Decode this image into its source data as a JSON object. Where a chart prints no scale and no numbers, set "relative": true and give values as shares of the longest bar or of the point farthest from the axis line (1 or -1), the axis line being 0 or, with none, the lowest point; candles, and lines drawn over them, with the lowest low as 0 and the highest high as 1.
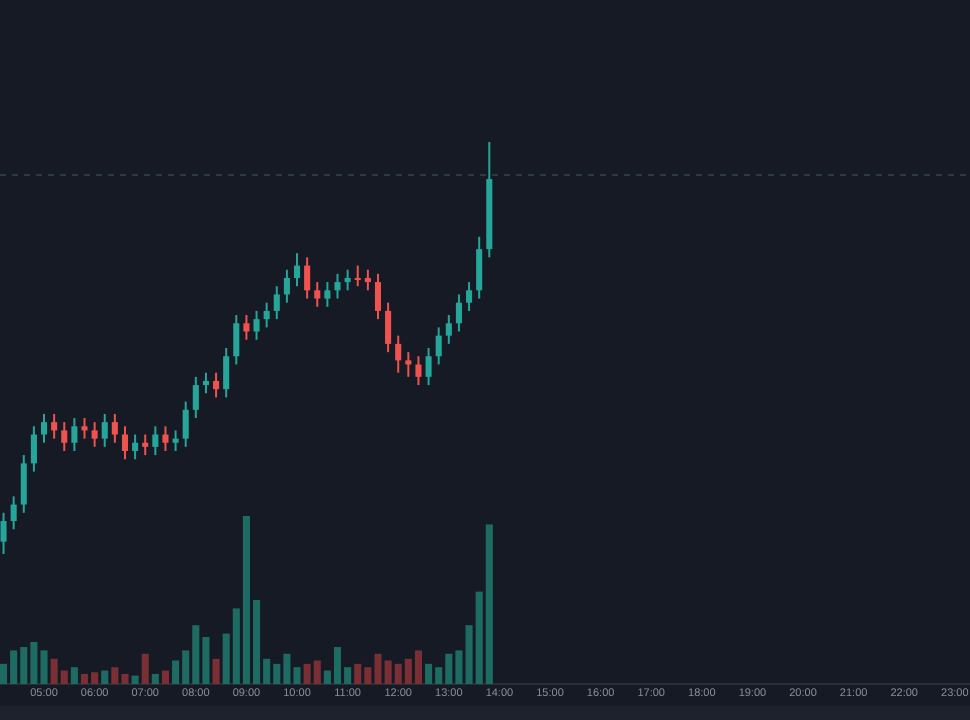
{
  "chart_data": [
    {
      "type": "candlestick",
      "relative": true,
      "xlim": [
        4.13,
        23.3
      ],
      "x": [
        4.2,
        4.4,
        4.6,
        4.8,
        5.0,
        5.2,
        5.4,
        5.6,
        5.8,
        6.0,
        6.2,
        6.4,
        6.6,
        6.8,
        7.0,
        7.2,
        7.4,
        7.6,
        7.8,
        8.0,
        8.2,
        8.4,
        8.6,
        8.8,
        9.0,
        9.2,
        9.4,
        9.6,
        9.8,
        10.0,
        10.2,
        10.4,
        10.6,
        10.8,
        11.0,
        11.2,
        11.4,
        11.6,
        11.8,
        12.0,
        12.2,
        12.4,
        12.6,
        12.8,
        13.0,
        13.2,
        13.4,
        13.6,
        13.8
      ],
      "ohlc": [
        [
          0.03,
          0.1,
          0,
          0.08
        ],
        [
          0.08,
          0.14,
          0.06,
          0.12
        ],
        [
          0.12,
          0.24,
          0.1,
          0.22
        ],
        [
          0.22,
          0.31,
          0.2,
          0.29
        ],
        [
          0.29,
          0.34,
          0.27,
          0.32
        ],
        [
          0.32,
          0.34,
          0.28,
          0.3
        ],
        [
          0.3,
          0.32,
          0.25,
          0.27
        ],
        [
          0.27,
          0.33,
          0.25,
          0.31
        ],
        [
          0.31,
          0.33,
          0.28,
          0.3
        ],
        [
          0.3,
          0.32,
          0.26,
          0.28
        ],
        [
          0.28,
          0.34,
          0.26,
          0.32
        ],
        [
          0.32,
          0.34,
          0.27,
          0.29
        ],
        [
          0.29,
          0.31,
          0.23,
          0.25
        ],
        [
          0.25,
          0.29,
          0.23,
          0.27
        ],
        [
          0.27,
          0.29,
          0.24,
          0.26
        ],
        [
          0.26,
          0.31,
          0.24,
          0.29
        ],
        [
          0.29,
          0.31,
          0.25,
          0.27
        ],
        [
          0.27,
          0.3,
          0.25,
          0.28
        ],
        [
          0.28,
          0.37,
          0.26,
          0.35
        ],
        [
          0.35,
          0.43,
          0.33,
          0.41
        ],
        [
          0.41,
          0.44,
          0.39,
          0.42
        ],
        [
          0.42,
          0.44,
          0.38,
          0.4
        ],
        [
          0.4,
          0.5,
          0.38,
          0.48
        ],
        [
          0.48,
          0.58,
          0.46,
          0.56
        ],
        [
          0.56,
          0.58,
          0.52,
          0.54
        ],
        [
          0.54,
          0.59,
          0.52,
          0.57
        ],
        [
          0.57,
          0.61,
          0.55,
          0.59
        ],
        [
          0.59,
          0.65,
          0.57,
          0.63
        ],
        [
          0.63,
          0.69,
          0.61,
          0.67
        ],
        [
          0.67,
          0.73,
          0.65,
          0.7
        ],
        [
          0.7,
          0.72,
          0.62,
          0.64
        ],
        [
          0.64,
          0.66,
          0.6,
          0.62
        ],
        [
          0.62,
          0.66,
          0.6,
          0.64
        ],
        [
          0.64,
          0.68,
          0.62,
          0.66
        ],
        [
          0.66,
          0.69,
          0.64,
          0.67
        ],
        [
          0.67,
          0.7,
          0.65,
          0.67
        ],
        [
          0.67,
          0.69,
          0.64,
          0.66
        ],
        [
          0.66,
          0.68,
          0.57,
          0.59
        ],
        [
          0.59,
          0.61,
          0.49,
          0.51
        ],
        [
          0.51,
          0.53,
          0.44,
          0.47
        ],
        [
          0.47,
          0.49,
          0.43,
          0.46
        ],
        [
          0.46,
          0.48,
          0.41,
          0.43
        ],
        [
          0.43,
          0.5,
          0.41,
          0.48
        ],
        [
          0.48,
          0.55,
          0.46,
          0.53
        ],
        [
          0.53,
          0.58,
          0.51,
          0.56
        ],
        [
          0.56,
          0.63,
          0.54,
          0.61
        ],
        [
          0.61,
          0.66,
          0.59,
          0.64
        ],
        [
          0.64,
          0.77,
          0.62,
          0.74
        ],
        [
          0.74,
          1,
          0.72,
          0.91
        ]
      ],
      "colors": [
        "#26a69a",
        "#26a69a",
        "#26a69a",
        "#26a69a",
        "#26a69a",
        "#ef5350",
        "#ef5350",
        "#26a69a",
        "#ef5350",
        "#ef5350",
        "#26a69a",
        "#ef5350",
        "#ef5350",
        "#26a69a",
        "#ef5350",
        "#26a69a",
        "#ef5350",
        "#26a69a",
        "#26a69a",
        "#26a69a",
        "#26a69a",
        "#ef5350",
        "#26a69a",
        "#26a69a",
        "#ef5350",
        "#26a69a",
        "#26a69a",
        "#26a69a",
        "#26a69a",
        "#26a69a",
        "#ef5350",
        "#ef5350",
        "#26a69a",
        "#26a69a",
        "#26a69a",
        "#ef5350",
        "#ef5350",
        "#ef5350",
        "#ef5350",
        "#ef5350",
        "#ef5350",
        "#ef5350",
        "#26a69a",
        "#26a69a",
        "#26a69a",
        "#26a69a",
        "#26a69a",
        "#26a69a",
        "#26a69a"
      ],
      "ref_lines": [
        {
          "axis": "y",
          "value": 0.92,
          "color": "#2c3b3f",
          "line_style": "dashed"
        }
      ]
    },
    {
      "type": "bar",
      "relative": true,
      "xlim": [
        4.13,
        23.3
      ],
      "xticks": [
        {
          "value": 5,
          "label": "05:00"
        },
        {
          "value": 6,
          "label": "06:00"
        },
        {
          "value": 7,
          "label": "07:00"
        },
        {
          "value": 8,
          "label": "08:00"
        },
        {
          "value": 9,
          "label": "09:00"
        },
        {
          "value": 10,
          "label": "10:00"
        },
        {
          "value": 11,
          "label": "11:00"
        },
        {
          "value": 12,
          "label": "12:00"
        },
        {
          "value": 13,
          "label": "13:00"
        },
        {
          "value": 14,
          "label": "14:00"
        },
        {
          "value": 15,
          "label": "15:00"
        },
        {
          "value": 16,
          "label": "16:00"
        },
        {
          "value": 17,
          "label": "17:00"
        },
        {
          "value": 18,
          "label": "18:00"
        },
        {
          "value": 19,
          "label": "19:00"
        },
        {
          "value": 20,
          "label": "20:00"
        },
        {
          "value": 21,
          "label": "21:00"
        },
        {
          "value": 22,
          "label": "22:00"
        },
        {
          "value": 23,
          "label": "23:00"
        }
      ],
      "x": [
        4.2,
        4.4,
        4.6,
        4.8,
        5.0,
        5.2,
        5.4,
        5.6,
        5.8,
        6.0,
        6.2,
        6.4,
        6.6,
        6.8,
        7.0,
        7.2,
        7.4,
        7.6,
        7.8,
        8.0,
        8.2,
        8.4,
        8.6,
        8.8,
        9.0,
        9.2,
        9.4,
        9.6,
        9.8,
        10.0,
        10.2,
        10.4,
        10.6,
        10.8,
        11.0,
        11.2,
        11.4,
        11.6,
        11.8,
        12.0,
        12.2,
        12.4,
        12.6,
        12.8,
        13.0,
        13.2,
        13.4,
        13.6,
        13.8
      ],
      "values": [
        0.12,
        0.2,
        0.22,
        0.25,
        0.2,
        0.15,
        0.08,
        0.1,
        0.06,
        0.07,
        0.08,
        0.1,
        0.06,
        0.05,
        0.18,
        0.06,
        0.08,
        0.14,
        0.2,
        0.35,
        0.28,
        0.15,
        0.3,
        0.45,
        1,
        0.5,
        0.15,
        0.12,
        0.18,
        0.1,
        0.12,
        0.14,
        0.08,
        0.22,
        0.1,
        0.12,
        0.1,
        0.18,
        0.14,
        0.12,
        0.15,
        0.2,
        0.12,
        0.1,
        0.18,
        0.2,
        0.35,
        0.55,
        0.95
      ],
      "colors": [
        "#1e6b63",
        "#1e6b63",
        "#1e6b63",
        "#1e6b63",
        "#1e6b63",
        "#7a2f35",
        "#7a2f35",
        "#1e6b63",
        "#7a2f35",
        "#7a2f35",
        "#1e6b63",
        "#7a2f35",
        "#7a2f35",
        "#1e6b63",
        "#7a2f35",
        "#1e6b63",
        "#7a2f35",
        "#1e6b63",
        "#1e6b63",
        "#1e6b63",
        "#1e6b63",
        "#7a2f35",
        "#1e6b63",
        "#1e6b63",
        "#1e6b63",
        "#1e6b63",
        "#1e6b63",
        "#1e6b63",
        "#1e6b63",
        "#1e6b63",
        "#7a2f35",
        "#7a2f35",
        "#1e6b63",
        "#1e6b63",
        "#1e6b63",
        "#7a2f35",
        "#7a2f35",
        "#7a2f35",
        "#7a2f35",
        "#7a2f35",
        "#7a2f35",
        "#7a2f35",
        "#1e6b63",
        "#1e6b63",
        "#1e6b63",
        "#1e6b63",
        "#1e6b63",
        "#1e6b63",
        "#1e6b63"
      ]
    }
  ]
}
